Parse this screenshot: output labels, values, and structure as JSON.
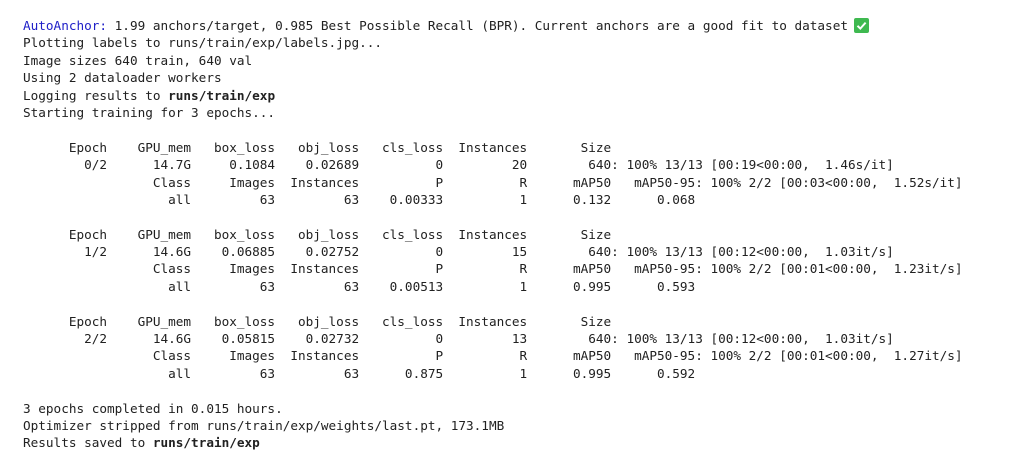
{
  "anchor": {
    "label": "AutoAnchor:",
    "text": "1.99 anchors/target, 0.985 Best Possible Recall (BPR). Current anchors are a good fit to dataset"
  },
  "lines": [
    "Plotting labels to runs/train/exp/labels.jpg...",
    "Image sizes 640 train, 640 val",
    "Using 2 dataloader workers"
  ],
  "logging": {
    "text": "Logging results to",
    "path": "runs/train/exp"
  },
  "starting": "Starting training for 3 epochs...",
  "epochs": [
    {
      "rows": [
        "      Epoch    GPU_mem   box_loss   obj_loss   cls_loss  Instances       Size",
        "        0/2      14.7G     0.1084    0.02689          0         20        640: 100% 13/13 [00:19<00:00,  1.46s/it]",
        "                 Class     Images  Instances          P          R      mAP50   mAP50-95: 100% 2/2 [00:03<00:00,  1.52s/it]",
        "                   all         63         63    0.00333          1      0.132      0.068"
      ]
    },
    {
      "rows": [
        "      Epoch    GPU_mem   box_loss   obj_loss   cls_loss  Instances       Size",
        "        1/2      14.6G    0.06885    0.02752          0         15        640: 100% 13/13 [00:12<00:00,  1.03it/s]",
        "                 Class     Images  Instances          P          R      mAP50   mAP50-95: 100% 2/2 [00:01<00:00,  1.23it/s]",
        "                   all         63         63    0.00513          1      0.995      0.593"
      ]
    },
    {
      "rows": [
        "      Epoch    GPU_mem   box_loss   obj_loss   cls_loss  Instances       Size",
        "        2/2      14.6G    0.05815    0.02732          0         13        640: 100% 13/13 [00:12<00:00,  1.03it/s]",
        "                 Class     Images  Instances          P          R      mAP50   mAP50-95: 100% 2/2 [00:01<00:00,  1.27it/s]",
        "                   all         63         63      0.875          1      0.995      0.592"
      ]
    }
  ],
  "completed": "3 epochs completed in 0.015 hours.",
  "optimizer": "Optimizer stripped from runs/train/exp/weights/last.pt, 173.1MB",
  "results": {
    "text": "Results saved to",
    "path": "runs/train/exp"
  }
}
